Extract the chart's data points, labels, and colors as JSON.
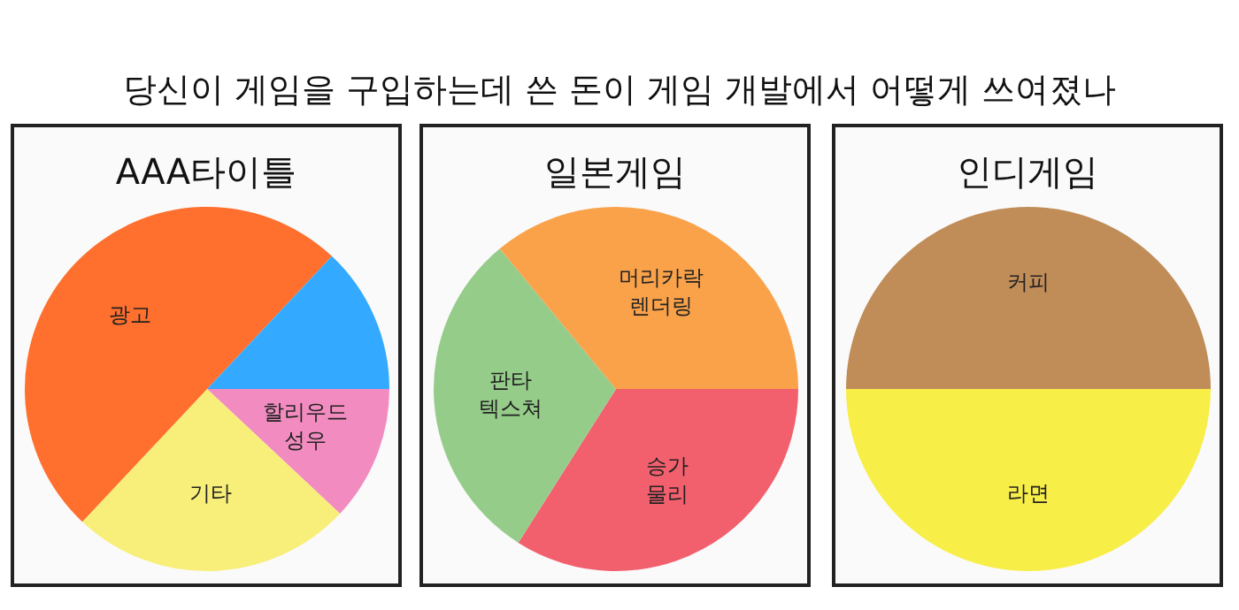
{
  "chart_data": [
    {
      "type": "pie",
      "title": "AAA타이틀",
      "annotations": [
        "당신이 게임을 구입하는데 쓴 돈이 게임 개발에서 어떻게 쓰여졌나"
      ],
      "categories": [
        "할리우드 성우",
        "기타",
        "광고",
        null
      ],
      "values": [
        12,
        25,
        50,
        13
      ],
      "colors": [
        "#f28cc0",
        "#f8ef7a",
        "#ff6f2e",
        "#33aaff"
      ]
    },
    {
      "type": "pie",
      "title": "일본게임",
      "categories": [
        "승가 물리",
        "판타 텍스쳐",
        "머리카락 렌더링"
      ],
      "values": [
        34,
        30,
        36
      ],
      "colors": [
        "#f2606e",
        "#96cc8a",
        "#f9a24a"
      ]
    },
    {
      "type": "pie",
      "title": "인디게임",
      "categories": [
        "라면",
        "커피"
      ],
      "values": [
        50,
        50
      ],
      "colors": [
        "#f8ee48",
        "#c08c58"
      ]
    }
  ]
}
